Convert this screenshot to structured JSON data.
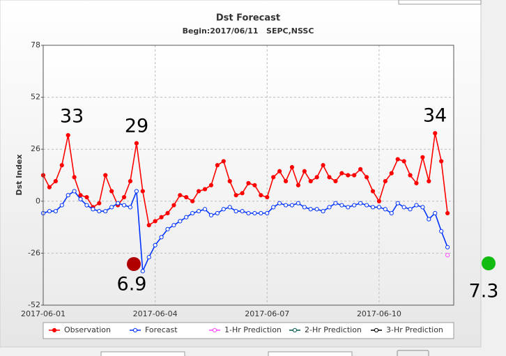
{
  "chart_data": {
    "type": "line",
    "title": "Dst Forecast",
    "subtitle": "Begin:2017/06/11   SEPC,NSSC",
    "y_label": "Dst Index",
    "categories": [
      "2017-06-01",
      null,
      null,
      null,
      null,
      null,
      null,
      null,
      null,
      null,
      null,
      null,
      null,
      null,
      null,
      null,
      null,
      null,
      "2017-06-04",
      null,
      null,
      null,
      null,
      null,
      null,
      null,
      null,
      null,
      null,
      null,
      null,
      null,
      null,
      null,
      null,
      null,
      "2017-06-07",
      null,
      null,
      null,
      null,
      null,
      null,
      null,
      null,
      null,
      null,
      null,
      null,
      null,
      null,
      null,
      null,
      null,
      "2017-06-10",
      null,
      null,
      null,
      null,
      null,
      null,
      null,
      null,
      null,
      null,
      null
    ],
    "series": [
      {
        "name": "Observation",
        "color": "#ff0000",
        "marker_fill": "#ff0000",
        "values": [
          13,
          7,
          10,
          18,
          33,
          12,
          3,
          2,
          -3,
          -1,
          13,
          5,
          -2,
          2,
          10,
          29,
          5,
          -12,
          -10,
          -8,
          -6,
          -2,
          3,
          2,
          0,
          5,
          6,
          8,
          18,
          20,
          10,
          3,
          4,
          9,
          8,
          3,
          2,
          12,
          15,
          10,
          17,
          8,
          15,
          10,
          12,
          18,
          12,
          10,
          14,
          13,
          13,
          16,
          12,
          5,
          0,
          10,
          14,
          21,
          20,
          13,
          9,
          22,
          10,
          34,
          20,
          -6
        ]
      },
      {
        "name": "Forecast",
        "color": "#0033ff",
        "marker_fill": "#ffffff",
        "values": [
          -6,
          -5,
          -5,
          -2,
          3,
          5,
          1,
          -2,
          -4,
          -5,
          -5,
          -3,
          -1,
          -2,
          -3,
          5,
          -35,
          -28,
          -22,
          -18,
          -14,
          -12,
          -10,
          -8,
          -6,
          -5,
          -4,
          -7,
          -6,
          -4,
          -3,
          -5,
          -5,
          -6,
          -6,
          -6,
          -6,
          -3,
          -1,
          -2,
          -2,
          -1,
          -3,
          -4,
          -4,
          -5,
          -3,
          -1,
          -2,
          -3,
          -2,
          -1,
          -2,
          -3,
          -3,
          -4,
          -6,
          -1,
          -3,
          -4,
          -2,
          -3,
          -9,
          -6,
          -15,
          -23
        ]
      },
      {
        "name": "1-Hr Prediction",
        "color": "#ff44ff",
        "marker_fill": "#ffffff",
        "values": [
          null,
          null,
          null,
          null,
          null,
          null,
          null,
          null,
          null,
          null,
          null,
          null,
          null,
          null,
          null,
          null,
          null,
          null,
          null,
          null,
          null,
          null,
          null,
          null,
          null,
          null,
          null,
          null,
          null,
          null,
          null,
          null,
          null,
          null,
          null,
          null,
          null,
          null,
          null,
          null,
          null,
          null,
          null,
          null,
          null,
          null,
          null,
          null,
          null,
          null,
          null,
          null,
          null,
          null,
          null,
          null,
          null,
          null,
          null,
          null,
          null,
          null,
          null,
          null,
          null,
          -27
        ]
      },
      {
        "name": "2-Hr Prediction",
        "color": "#005a50",
        "marker_fill": "#ffffff",
        "values": [
          null,
          null,
          null,
          null,
          null,
          null,
          null,
          null,
          null,
          null,
          null,
          null,
          null,
          null,
          null,
          null,
          null,
          null,
          null,
          null,
          null,
          null,
          null,
          null,
          null,
          null,
          null,
          null,
          null,
          null,
          null,
          null,
          null,
          null,
          null,
          null,
          null,
          null,
          null,
          null,
          null,
          null,
          null,
          null,
          null,
          null,
          null,
          null,
          null,
          null,
          null,
          null,
          null,
          null,
          null,
          null,
          null,
          null,
          null,
          null,
          null,
          null,
          null,
          null,
          null,
          null
        ]
      },
      {
        "name": "3-Hr Prediction",
        "color": "#000000",
        "marker_fill": "#ffffff",
        "values": [
          null,
          null,
          null,
          null,
          null,
          null,
          null,
          null,
          null,
          null,
          null,
          null,
          null,
          null,
          null,
          null,
          null,
          null,
          null,
          null,
          null,
          null,
          null,
          null,
          null,
          null,
          null,
          null,
          null,
          null,
          null,
          null,
          null,
          null,
          null,
          null,
          null,
          null,
          null,
          null,
          null,
          null,
          null,
          null,
          null,
          null,
          null,
          null,
          null,
          null,
          null,
          null,
          null,
          null,
          null,
          null,
          null,
          null,
          null,
          null,
          null,
          null,
          null,
          null,
          null,
          null
        ]
      }
    ],
    "ylim": [
      -52,
      78
    ],
    "yticks": [
      -52,
      -26,
      0,
      26,
      52,
      78
    ],
    "grid": true,
    "legend": "bottom",
    "annotations": [
      "33",
      "29",
      "34",
      "6.9",
      "7.3"
    ]
  }
}
